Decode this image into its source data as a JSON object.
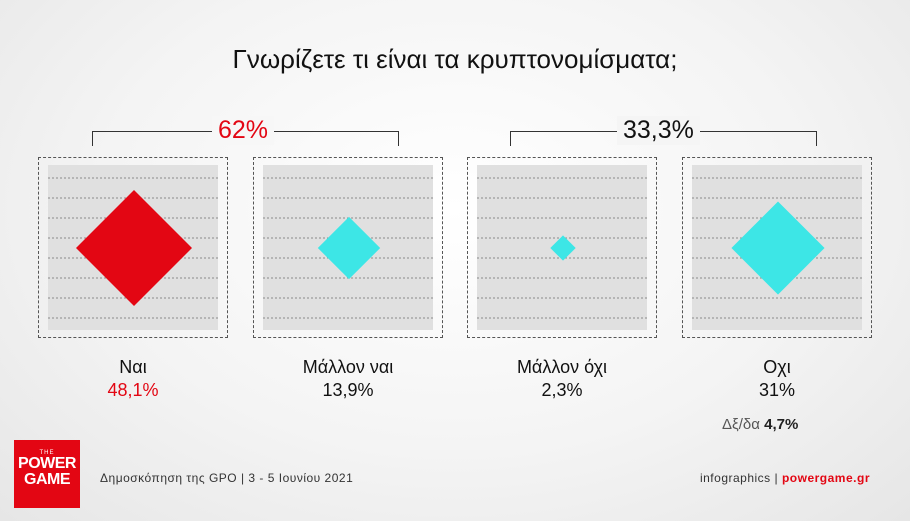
{
  "chart_data": {
    "type": "diamond-area",
    "title": "Γνωρίζετε τι είναι τα κρυπτονομίσματα;",
    "groups": [
      {
        "label": "62%",
        "color": "#e30613"
      },
      {
        "label": "33,3%",
        "color": "#111111"
      }
    ],
    "categories": [
      "Ναι",
      "Μάλλον ναι",
      "Μάλλον όχι",
      "Οχι"
    ],
    "values": [
      48.1,
      13.9,
      2.3,
      31
    ],
    "value_labels": [
      "48,1%",
      "13,9%",
      "2,3%",
      "31%"
    ],
    "colors": [
      "#e30613",
      "#3de6e6",
      "#3de6e6",
      "#3de6e6"
    ],
    "value_label_colors": [
      "#e30613",
      "#111111",
      "#111111",
      "#111111"
    ],
    "note_label": "Δξ/δα",
    "note_value": "4,7%"
  },
  "footer": {
    "source": "Δημοσκόπηση της GPO | 3 - 5 Ιουνίου 2021",
    "credit_prefix": "infographics | ",
    "credit_site": "powergame.gr"
  },
  "logo": {
    "line1": "THE",
    "line2": "POWER",
    "line3": "GAME"
  }
}
